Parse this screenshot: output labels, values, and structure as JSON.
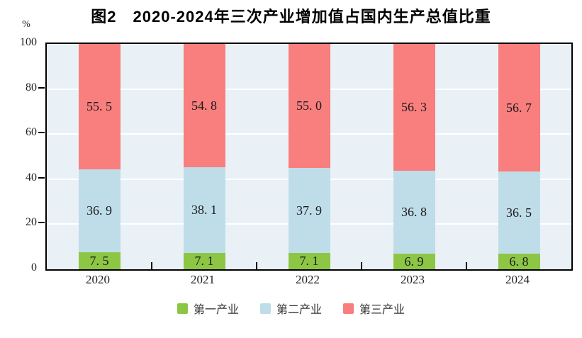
{
  "chart": {
    "title": "图2　2020-2024年三次产业增加值占国内生产总值比重",
    "unit_label": "%"
  },
  "chart_data": {
    "type": "bar",
    "stacked": true,
    "title": "图2　2020-2024年三次产业增加值占国内生产总值比重",
    "xlabel": "",
    "ylabel": "%",
    "ylim": [
      0,
      100
    ],
    "yticks": [
      0,
      20,
      40,
      60,
      80,
      100
    ],
    "grid": true,
    "legend_position": "bottom",
    "categories": [
      "2020",
      "2021",
      "2022",
      "2023",
      "2024"
    ],
    "series": [
      {
        "name": "第一产业",
        "color": "#8cc644",
        "values": [
          7.5,
          7.1,
          7.1,
          6.9,
          6.8
        ]
      },
      {
        "name": "第二产业",
        "color": "#bfdde9",
        "values": [
          36.9,
          38.1,
          37.9,
          36.8,
          36.5
        ]
      },
      {
        "name": "第三产业",
        "color": "#f97e7e",
        "values": [
          55.5,
          54.8,
          55.0,
          56.3,
          56.7
        ]
      }
    ],
    "colors": {
      "plot_background": "#e9f1f6",
      "gridline": "#ffffff",
      "axis_border": "#000000"
    }
  }
}
